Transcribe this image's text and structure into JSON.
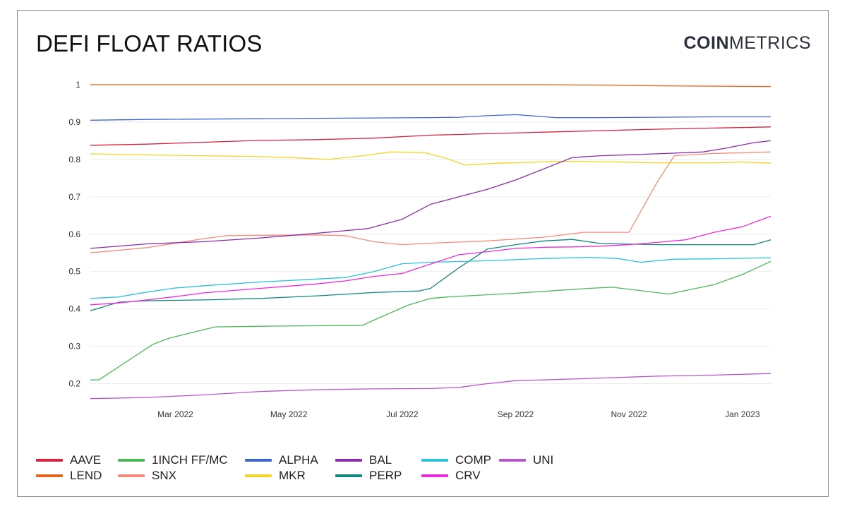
{
  "header": {
    "title": "DEFI FLOAT RATIOS",
    "logo_bold": "COIN",
    "logo_light": "METRICS"
  },
  "chart_data": {
    "type": "line",
    "title": "DEFI FLOAT RATIOS",
    "xlabel": "",
    "ylabel": "",
    "x_range": [
      0,
      12
    ],
    "ylim": [
      0.15,
      1.0
    ],
    "y_ticks": [
      0.2,
      0.3,
      0.4,
      0.5,
      0.6,
      0.7,
      0.8,
      0.9,
      1
    ],
    "y_tick_labels": [
      "0.2",
      "0.3",
      "0.4",
      "0.5",
      "0.6",
      "0.7",
      "0.8",
      "0.9",
      "1"
    ],
    "x_ticks": [
      1.5,
      3.5,
      5.5,
      7.5,
      9.5,
      11.5
    ],
    "x_tick_labels": [
      "Mar 2022",
      "May 2022",
      "Jul 2022",
      "Sep 2022",
      "Nov 2022",
      "Jan 2023"
    ],
    "grid": true,
    "legend_position": "bottom",
    "series": [
      {
        "name": "AAVE",
        "color": "#d6223f",
        "x": [
          0,
          1,
          2,
          3,
          4,
          5,
          6,
          7,
          8,
          9,
          10,
          11,
          12
        ],
        "values": [
          0.838,
          0.841,
          0.846,
          0.851,
          0.853,
          0.857,
          0.865,
          0.869,
          0.873,
          0.877,
          0.881,
          0.884,
          0.887
        ]
      },
      {
        "name": "LEND",
        "color": "#e2651d",
        "x": [
          0,
          2,
          4,
          6,
          8,
          9,
          10,
          11,
          12
        ],
        "values": [
          1.0,
          1.0,
          1.0,
          1.0,
          1.0,
          0.999,
          0.997,
          0.996,
          0.995
        ]
      },
      {
        "name": "1INCH FF/MC",
        "color": "#4cb859",
        "x": [
          0,
          0.15,
          0.5,
          1.1,
          1.4,
          2.2,
          3.2,
          4.8,
          5.0,
          5.6,
          6.0,
          6.3,
          7.5,
          8.8,
          9.2,
          10.2,
          11.0,
          11.5,
          12.0
        ],
        "values": [
          0.21,
          0.21,
          0.245,
          0.305,
          0.322,
          0.352,
          0.354,
          0.356,
          0.37,
          0.41,
          0.428,
          0.432,
          0.442,
          0.455,
          0.458,
          0.44,
          0.465,
          0.492,
          0.527
        ]
      },
      {
        "name": "SNX",
        "color": "#f68b7b",
        "x": [
          0,
          1,
          2,
          2.4,
          3,
          4,
          4.5,
          5,
          5.5,
          6,
          7,
          8,
          8.7,
          9.5,
          10,
          10.3,
          11,
          12
        ],
        "values": [
          0.55,
          0.564,
          0.588,
          0.596,
          0.597,
          0.598,
          0.596,
          0.58,
          0.572,
          0.576,
          0.582,
          0.592,
          0.605,
          0.605,
          0.74,
          0.81,
          0.816,
          0.82
        ]
      },
      {
        "name": "ALPHA",
        "color": "#3f66c9",
        "x": [
          0,
          1,
          2,
          3,
          4,
          5,
          6,
          6.5,
          7,
          7.5,
          8.2,
          9,
          10,
          11,
          12
        ],
        "values": [
          0.905,
          0.907,
          0.908,
          0.909,
          0.91,
          0.911,
          0.912,
          0.913,
          0.917,
          0.92,
          0.912,
          0.912,
          0.913,
          0.914,
          0.914
        ]
      },
      {
        "name": "MKR",
        "color": "#f5d327",
        "x": [
          0,
          1,
          2,
          2.8,
          3.5,
          4.2,
          4.8,
          5.3,
          5.9,
          6.3,
          6.6,
          7.2,
          7.7,
          8.2,
          9.0,
          10.0,
          11.0,
          11.5,
          12.0
        ],
        "values": [
          0.815,
          0.812,
          0.81,
          0.808,
          0.805,
          0.8,
          0.81,
          0.82,
          0.818,
          0.802,
          0.785,
          0.79,
          0.792,
          0.795,
          0.794,
          0.791,
          0.791,
          0.793,
          0.79
        ]
      },
      {
        "name": "BAL",
        "color": "#8a2da8",
        "x": [
          0,
          1,
          2,
          3,
          3.8,
          4.4,
          4.9,
          5.5,
          6.0,
          6.5,
          7.0,
          7.5,
          8.0,
          8.5,
          9.0,
          10.0,
          10.8,
          11.2,
          11.7,
          12.0
        ],
        "values": [
          0.562,
          0.574,
          0.58,
          0.59,
          0.6,
          0.608,
          0.615,
          0.64,
          0.68,
          0.7,
          0.72,
          0.745,
          0.775,
          0.805,
          0.81,
          0.815,
          0.82,
          0.83,
          0.845,
          0.85
        ]
      },
      {
        "name": "PERP",
        "color": "#10897a",
        "x": [
          0,
          0.5,
          1,
          2,
          3,
          4,
          5,
          5.8,
          6.0,
          6.5,
          7.0,
          7.5,
          8.0,
          8.5,
          9.0,
          10.0,
          11.0,
          11.7,
          12.0
        ],
        "values": [
          0.395,
          0.418,
          0.422,
          0.424,
          0.428,
          0.435,
          0.444,
          0.448,
          0.455,
          0.51,
          0.56,
          0.572,
          0.582,
          0.586,
          0.575,
          0.572,
          0.572,
          0.572,
          0.585
        ]
      },
      {
        "name": "COMP",
        "color": "#2cc2d8",
        "x": [
          0,
          0.5,
          1,
          1.5,
          2,
          3,
          4,
          4.5,
          5.0,
          5.5,
          6.0,
          7.0,
          8.0,
          8.8,
          9.3,
          9.7,
          10.3,
          11.0,
          12.0
        ],
        "values": [
          0.428,
          0.432,
          0.445,
          0.456,
          0.462,
          0.472,
          0.48,
          0.484,
          0.5,
          0.521,
          0.525,
          0.529,
          0.535,
          0.538,
          0.535,
          0.525,
          0.533,
          0.534,
          0.537
        ]
      },
      {
        "name": "CRV",
        "color": "#ee2bdc",
        "x": [
          0,
          0.5,
          1,
          1.5,
          2,
          3,
          4,
          4.5,
          5.0,
          5.5,
          6.0,
          6.5,
          7.0,
          7.5,
          8.0,
          8.5,
          9.0,
          9.5,
          10.0,
          10.5,
          11.0,
          11.5,
          12.0
        ],
        "values": [
          0.411,
          0.416,
          0.424,
          0.433,
          0.443,
          0.455,
          0.467,
          0.475,
          0.487,
          0.495,
          0.52,
          0.545,
          0.553,
          0.562,
          0.565,
          0.566,
          0.568,
          0.572,
          0.578,
          0.585,
          0.605,
          0.62,
          0.648
        ]
      },
      {
        "name": "UNI",
        "color": "#b557c8",
        "x": [
          0,
          1,
          2,
          3,
          4,
          5,
          6,
          6.5,
          7.0,
          7.5,
          8.0,
          9.0,
          10.0,
          11.0,
          12.0
        ],
        "values": [
          0.16,
          0.163,
          0.17,
          0.179,
          0.184,
          0.186,
          0.187,
          0.19,
          0.2,
          0.208,
          0.21,
          0.215,
          0.22,
          0.223,
          0.227
        ]
      }
    ]
  }
}
